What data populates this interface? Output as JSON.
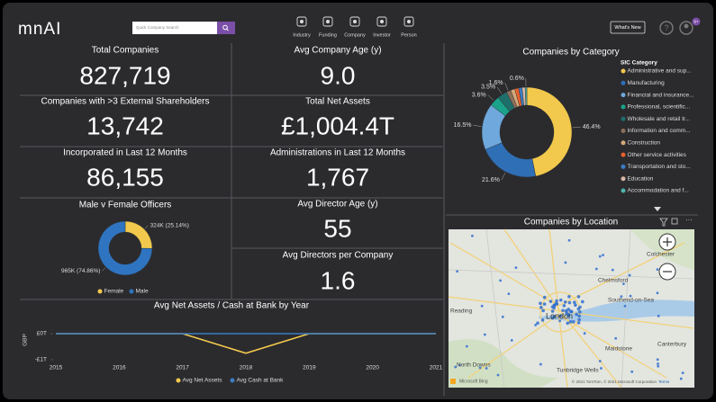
{
  "header": {
    "logo": "mnAI",
    "search_placeholder": "Quick Company Search",
    "nav": [
      "Industry",
      "Funding",
      "Company",
      "Investor",
      "Person"
    ],
    "whats_new": "What's New",
    "badge": "9+"
  },
  "kpis": [
    {
      "title": "Total Companies",
      "value": "827,719"
    },
    {
      "title": "Avg Company Age (y)",
      "value": "9.0"
    },
    {
      "title": "Companies with >3 External Shareholders",
      "value": "13,742"
    },
    {
      "title": "Total Net Assets",
      "value": "£1,004.4T"
    },
    {
      "title": "Incorporated in Last 12 Months",
      "value": "86,155"
    },
    {
      "title": "Administrations in Last 12 Months",
      "value": "1,767"
    },
    {
      "title": "Avg Director Age (y)",
      "value": "55"
    },
    {
      "title": "Avg Directors per Company",
      "value": "1.6"
    }
  ],
  "chart_data": [
    {
      "type": "pie",
      "donut": true,
      "title": "Male v Female Officers",
      "categories": [
        "Female",
        "Male"
      ],
      "values": [
        25.14,
        74.86
      ],
      "value_labels": [
        "324K (25.14%)",
        "965K (74.86%)"
      ],
      "colors": [
        "#f2c94c",
        "#2f74c0"
      ],
      "legend": "bottom"
    },
    {
      "type": "pie",
      "donut": true,
      "title": "Companies by Category",
      "legend_title": "SIC Category",
      "categories": [
        "Administrative and sup...",
        "Manufacturing",
        "Financial and insurance...",
        "Professional, scientific...",
        "Wholesale and retail tr...",
        "Information and comm...",
        "Construction",
        "Other service activities",
        "Transportation and sto...",
        "Education",
        "Accommodation and f..."
      ],
      "values": [
        46.4,
        21.6,
        16.5,
        3.6,
        3.5,
        1.6,
        1.5,
        1.4,
        1.2,
        1.1,
        0.6
      ],
      "value_labels": [
        "46.4%",
        "21.6%",
        "16.5%",
        "3.6%",
        "3.5%",
        "1.6%",
        null,
        null,
        null,
        null,
        "0.6%"
      ],
      "colors": [
        "#f2c94c",
        "#2f6fb6",
        "#6fa8dc",
        "#1aa38a",
        "#1e6f6a",
        "#8b6f5a",
        "#d3a87a",
        "#e8612c",
        "#3b7dc4",
        "#d9b8a6",
        "#4fb3a9"
      ],
      "legend": "right"
    },
    {
      "type": "line",
      "title": "Avg Net Assets / Cash at Bank by Year",
      "y_label": "GBP",
      "x": [
        2015,
        2016,
        2017,
        2018,
        2019,
        2020,
        2021
      ],
      "xlim": [
        2015,
        2021
      ],
      "xticks": [
        2015,
        2016,
        2017,
        2018,
        2019,
        2020,
        2021
      ],
      "ylim": [
        -1.2,
        0.5
      ],
      "yticks": [
        {
          "value": 0,
          "label": "£0T"
        },
        {
          "value": -1,
          "label": "-£1T"
        }
      ],
      "series": [
        {
          "name": "Avg Net Assets",
          "color": "#f2c94c",
          "values": [
            0,
            0,
            0,
            -0.75,
            0,
            0,
            0
          ]
        },
        {
          "name": "Avg Cash at Bank",
          "color": "#3b7dc4",
          "values": [
            0,
            0,
            0,
            0,
            0,
            0,
            0
          ]
        }
      ],
      "legend": "bottom"
    }
  ],
  "map": {
    "title": "Companies by Location",
    "places": [
      "Colchester",
      "Chelmsford",
      "Southend-on-Sea",
      "Reading",
      "London",
      "Maidstone",
      "Canterbury",
      "Tunbridge Wells",
      "North Downs"
    ],
    "attribution": "© 2021 TomTom, © 2021 Microsoft Corporation",
    "terms": "Terms",
    "brand": "Microsoft Bing"
  }
}
